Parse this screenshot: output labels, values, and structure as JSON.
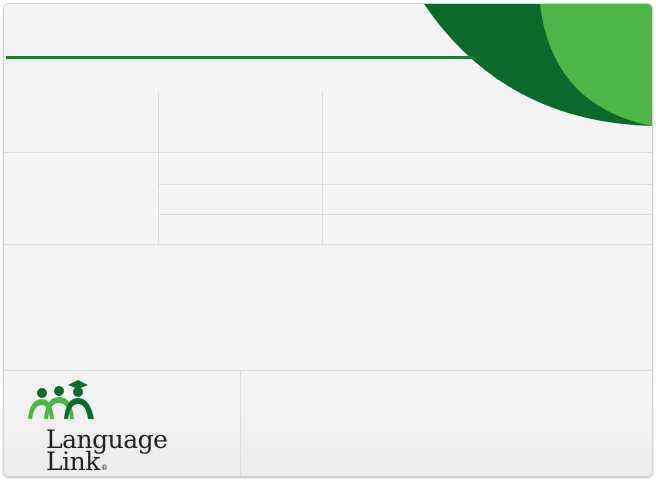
{
  "brand": {
    "logo_line1": "Language",
    "logo_line2": "Link",
    "logo_mark": "®",
    "colors": {
      "dark_green": "#0b6a2b",
      "light_green": "#4eb548",
      "rule": "#1f7a3a"
    }
  },
  "icons": {
    "logo": "people-graduation-cap-icon",
    "decoration": "green-corner-arcs"
  },
  "table": {
    "header": [
      "",
      "",
      ""
    ],
    "rows": [
      [
        "",
        "",
        ""
      ],
      [
        "",
        "",
        ""
      ],
      [
        "",
        "",
        ""
      ]
    ]
  },
  "body_text": "",
  "footer": {
    "right_text": ""
  }
}
